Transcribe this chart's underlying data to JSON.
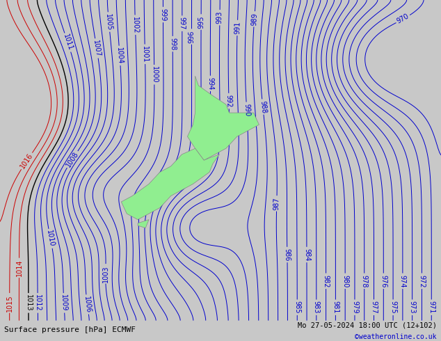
{
  "title_left": "Surface pressure [hPa] ECMWF",
  "title_right": "Mo 27-05-2024 18:00 UTC (12+102)",
  "copyright": "©weatheronline.co.uk",
  "background_color": "#d8d8d8",
  "map_background": "#d0d0d0",
  "land_color": "#90ee90",
  "figsize": [
    6.34,
    4.9
  ],
  "dpi": 100,
  "pressure_min": 970,
  "pressure_max": 1016,
  "pressure_interval": 1,
  "blue_color": "#0000cd",
  "red_color": "#cc0000",
  "black_color": "#000000",
  "font_size_labels": 7,
  "font_size_bottom": 7
}
